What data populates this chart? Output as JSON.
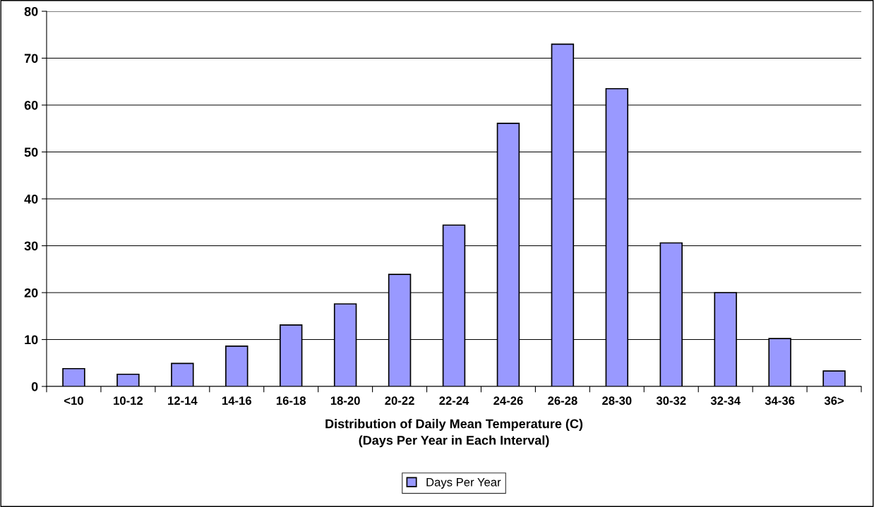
{
  "chart_data": {
    "type": "bar",
    "xlabel": "Distribution of Daily Mean Temperature (C)\n(Days Per Year in Each Interval)",
    "categories": [
      "<10",
      "10-12",
      "12-14",
      "14-16",
      "16-18",
      "18-20",
      "20-22",
      "22-24",
      "24-26",
      "26-28",
      "28-30",
      "30-32",
      "32-34",
      "34-36",
      "36>"
    ],
    "series": [
      {
        "name": "Days Per Year",
        "color": "#9999ff",
        "values": [
          3.8,
          2.6,
          4.9,
          8.6,
          13.1,
          17.6,
          23.9,
          34.4,
          56.1,
          73.0,
          63.5,
          30.6,
          20.0,
          10.2,
          3.3
        ]
      }
    ],
    "ylim": [
      0,
      80
    ],
    "yticks": [
      0,
      10,
      20,
      30,
      40,
      50,
      60,
      70,
      80
    ],
    "grid": "y",
    "legend": "bottom"
  }
}
